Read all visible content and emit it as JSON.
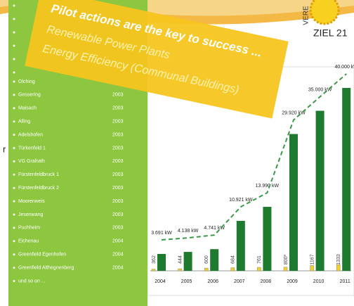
{
  "logo": {
    "side_text": "VERE",
    "main_text": "ZIEL 21"
  },
  "left_fragment": "r",
  "list": {
    "items": [
      {
        "name": "Olching",
        "year": ""
      },
      {
        "name": "Gessering",
        "year": "2003"
      },
      {
        "name": "Maisach",
        "year": "2003"
      },
      {
        "name": "Alling",
        "year": "2003"
      },
      {
        "name": "Adelshofen",
        "year": "2003"
      },
      {
        "name": "Türkenfeld 1",
        "year": "2003"
      },
      {
        "name": "VG Grafrath",
        "year": "2003"
      },
      {
        "name": "Fürstenfeldbruck 1",
        "year": "2003"
      },
      {
        "name": "Fürstenfeldbruck 2",
        "year": "2003"
      },
      {
        "name": "Moorenweis",
        "year": "2003"
      },
      {
        "name": "Jesenwang",
        "year": "2003"
      },
      {
        "name": "Puchheim",
        "year": "2003"
      },
      {
        "name": "Eichenau",
        "year": "2004"
      },
      {
        "name": "Greenfield Egenhofen",
        "year": "2004"
      },
      {
        "name": "Greenfield Althegnenberg",
        "year": "2004"
      },
      {
        "name": "und so on ...",
        "year": ""
      }
    ]
  },
  "banner": {
    "headline": "Pilot actions are the key to success ...",
    "line1": "Renewable Power Plants",
    "line2": "Energy Efficiency (Communal Buildings)"
  },
  "chart_data": {
    "type": "bar",
    "categories": [
      "2004",
      "2005",
      "2006",
      "2007",
      "2008",
      "2009",
      "2010",
      "2011"
    ],
    "ylim": [
      0,
      40000
    ],
    "series": [
      {
        "color": "#1e7a2e",
        "values": [
          3691,
          4138,
          4741,
          10921,
          13990,
          29920,
          35000,
          40000
        ],
        "value_labels": [
          "3.691 kW",
          "4.138 kW",
          "4.741 kW",
          "10.921 kW",
          "13.990 kW",
          "29.920 kW",
          "35.000 kW",
          "40.000 kW"
        ]
      },
      {
        "color": "#f2d02a",
        "values": [
          362,
          444,
          600,
          684,
          761,
          800,
          1167,
          1333
        ],
        "value_labels": [
          "362",
          "444",
          "600",
          "684",
          "761",
          "800*",
          "1167",
          "1333"
        ]
      }
    ]
  }
}
